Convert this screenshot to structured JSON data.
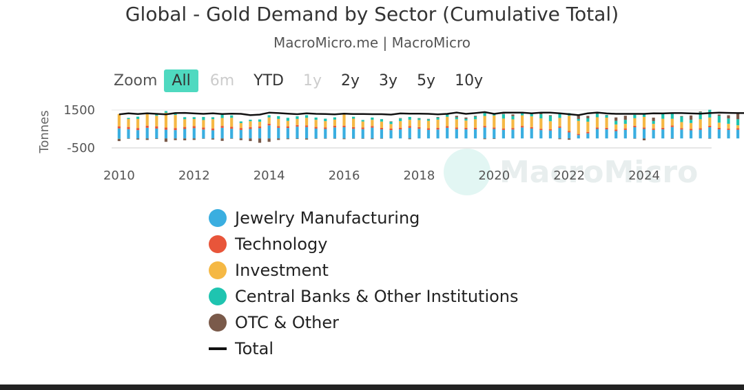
{
  "header": {
    "title": "Global - Gold Demand by Sector (Cumulative Total)",
    "subtitle": "MacroMicro.me | MacroMicro"
  },
  "zoom": {
    "label": "Zoom",
    "buttons": [
      {
        "label": "All",
        "state": "active"
      },
      {
        "label": "6m",
        "state": "disabled"
      },
      {
        "label": "YTD",
        "state": "normal"
      },
      {
        "label": "1y",
        "state": "disabled"
      },
      {
        "label": "2y",
        "state": "normal"
      },
      {
        "label": "3y",
        "state": "normal"
      },
      {
        "label": "5y",
        "state": "normal"
      },
      {
        "label": "10y",
        "state": "normal"
      }
    ]
  },
  "watermark": "MacroMicro",
  "chart_data": {
    "type": "stacked-bar-with-line",
    "title": "Global - Gold Demand by Sector (Cumulative Total)",
    "ylabel": "Tonnes",
    "ylim": [
      -500,
      1500
    ],
    "yticks": [
      1500,
      -500
    ],
    "xlim": [
      2009.8,
      2025.8
    ],
    "xticks": [
      2010,
      2012,
      2014,
      2016,
      2018,
      2020,
      2022,
      2024
    ],
    "frequency": "quarterly",
    "start": "2010Q1",
    "series": [
      {
        "name": "Jewelry Manufacturing",
        "color": "#3aaee0",
        "values": [
          530,
          490,
          440,
          560,
          520,
          460,
          440,
          500,
          540,
          470,
          430,
          560,
          510,
          450,
          500,
          540,
          690,
          560,
          550,
          620,
          600,
          520,
          500,
          580,
          590,
          510,
          490,
          570,
          480,
          440,
          480,
          560,
          510,
          450,
          470,
          560,
          490,
          480,
          480,
          580,
          500,
          450,
          470,
          580,
          520,
          440,
          420,
          560,
          320,
          180,
          270,
          500,
          480,
          390,
          450,
          590,
          500,
          450,
          480,
          600,
          470,
          430,
          460,
          590,
          480,
          450,
          460,
          590,
          500,
          420,
          410,
          540
        ]
      },
      {
        "name": "Technology",
        "color": "#e8553a",
        "values": [
          110,
          115,
          110,
          115,
          120,
          115,
          110,
          105,
          105,
          105,
          100,
          100,
          100,
          100,
          100,
          95,
          90,
          90,
          90,
          90,
          90,
          85,
          85,
          85,
          85,
          85,
          85,
          85,
          80,
          80,
          85,
          85,
          85,
          85,
          85,
          85,
          85,
          85,
          85,
          80,
          80,
          80,
          80,
          80,
          75,
          70,
          70,
          75,
          70,
          60,
          75,
          80,
          80,
          80,
          80,
          80,
          80,
          80,
          80,
          80,
          75,
          75,
          75,
          75,
          75,
          75,
          75,
          75,
          80,
          80,
          80,
          80
        ]
      },
      {
        "name": "Investment",
        "color": "#f5b844",
        "values": [
          650,
          420,
          480,
          640,
          560,
          780,
          690,
          410,
          380,
          400,
          490,
          420,
          480,
          260,
          310,
          250,
          330,
          380,
          290,
          320,
          400,
          380,
          330,
          330,
          590,
          450,
          320,
          330,
          330,
          240,
          350,
          340,
          380,
          400,
          440,
          500,
          440,
          380,
          450,
          530,
          630,
          520,
          460,
          560,
          570,
          550,
          420,
          450,
          810,
          690,
          540,
          540,
          540,
          270,
          240,
          400,
          560,
          240,
          480,
          360,
          320,
          310,
          480,
          440,
          280,
          250,
          160,
          240,
          550,
          400,
          350,
          450
        ]
      },
      {
        "name": "Central Banks & Other Institutions",
        "color": "#1fc4b0",
        "values": [
          -20,
          60,
          120,
          30,
          110,
          90,
          140,
          110,
          100,
          160,
          100,
          170,
          130,
          90,
          80,
          120,
          120,
          150,
          160,
          140,
          140,
          120,
          130,
          120,
          80,
          100,
          80,
          120,
          130,
          140,
          140,
          150,
          90,
          80,
          110,
          110,
          100,
          90,
          140,
          150,
          90,
          230,
          170,
          150,
          160,
          220,
          280,
          230,
          140,
          100,
          180,
          180,
          130,
          190,
          210,
          180,
          130,
          150,
          250,
          320,
          290,
          170,
          370,
          410,
          360,
          280,
          320,
          320,
          290,
          200,
          190,
          230
        ]
      },
      {
        "name": "OTC & Other",
        "color": "#7a5a4a",
        "values": [
          -120,
          -20,
          -60,
          -80,
          -30,
          -180,
          -90,
          -100,
          -80,
          -20,
          -60,
          -130,
          -20,
          -90,
          -140,
          -230,
          -180,
          -80,
          -40,
          -30,
          -60,
          -20,
          -10,
          -10,
          -40,
          -10,
          -20,
          -40,
          -10,
          0,
          20,
          -40,
          10,
          20,
          30,
          10,
          80,
          70,
          40,
          -40,
          -30,
          20,
          90,
          30,
          20,
          40,
          40,
          -40,
          -70,
          170,
          130,
          40,
          10,
          180,
          220,
          -10,
          -100,
          180,
          70,
          -20,
          30,
          230,
          40,
          -10,
          70,
          170,
          300,
          80,
          -150,
          140,
          280,
          70
        ]
      },
      {
        "name": "Total",
        "color": "#111111",
        "type": "line",
        "values": [
          1270,
          1330,
          1290,
          1330,
          1300,
          1270,
          1340,
          1350,
          1320,
          1300,
          1330,
          1290,
          1310,
          1300,
          1230,
          1260,
          1360,
          1340,
          1310,
          1280,
          1330,
          1300,
          1290,
          1270,
          1310,
          1290,
          1290,
          1280,
          1280,
          1260,
          1320,
          1310,
          1310,
          1300,
          1270,
          1300,
          1370,
          1300,
          1340,
          1390,
          1300,
          1360,
          1360,
          1360,
          1330,
          1360,
          1360,
          1330,
          1280,
          1230,
          1330,
          1370,
          1320,
          1300,
          1300,
          1300,
          1300,
          1330,
          1320,
          1340,
          1340,
          1320,
          1310,
          1340,
          1360,
          1350,
          1340,
          1340,
          1380,
          1300,
          1330,
          1420
        ]
      }
    ]
  }
}
